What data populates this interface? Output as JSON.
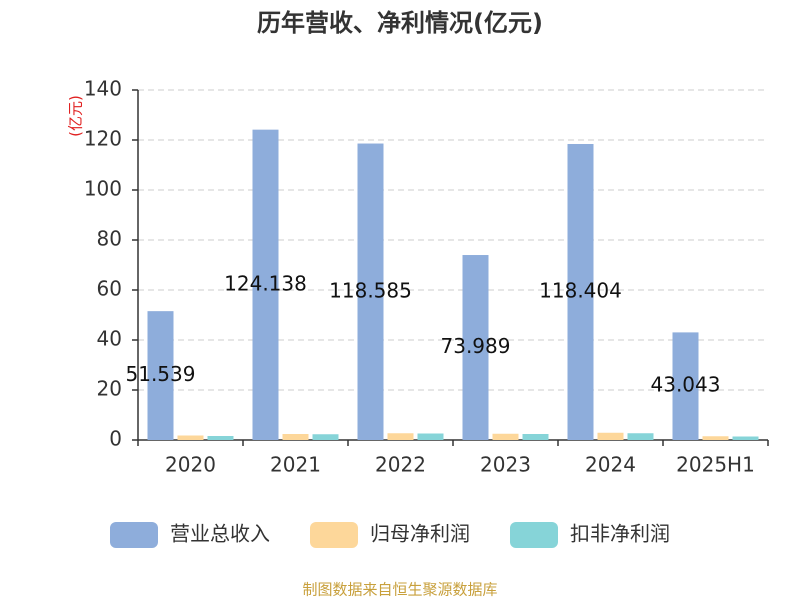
{
  "chart_data": {
    "type": "bar",
    "title": "历年营收、净利情况(亿元)",
    "y_label": "(亿元)",
    "categories": [
      "2020",
      "2021",
      "2022",
      "2023",
      "2024",
      "2025H1"
    ],
    "series": [
      {
        "name": "营业总收入",
        "color": "#8eaddb",
        "values": [
          51.539,
          124.138,
          118.585,
          73.989,
          118.404,
          43.043
        ]
      },
      {
        "name": "归母净利润",
        "color": "#fdd79a",
        "values": [
          1.8,
          2.4,
          2.7,
          2.5,
          2.9,
          1.5
        ]
      },
      {
        "name": "扣非净利润",
        "color": "#86d4d8",
        "values": [
          1.6,
          2.3,
          2.6,
          2.4,
          2.7,
          1.4
        ]
      }
    ],
    "ylim": [
      0,
      140
    ],
    "yticks": [
      0,
      20,
      40,
      60,
      80,
      100,
      120,
      140
    ],
    "grid": true,
    "source": "制图数据来自恒生聚源数据库"
  }
}
